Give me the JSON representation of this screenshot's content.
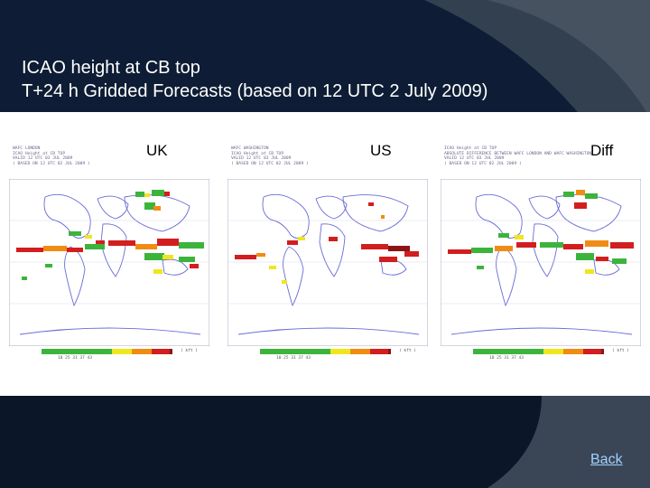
{
  "slide": {
    "title_line1": "ICAO height at CB top",
    "title_line2": "T+24 h Gridded Forecasts (based on 12 UTC 2 July 2009)"
  },
  "panels": [
    {
      "label": "UK",
      "header": "WAFC LONDON\nICAO Height at CB TOP\nVALID 12 UTC 03 JUL 2009\n( BASED ON 12 UTC 02 JUL 2009 )"
    },
    {
      "label": "US",
      "header": "WAFC WASHINGTON\nICAO Height at CB TOP\nVALID 12 UTC 03 JUL 2009\n( BASED ON 12 UTC 02 JUL 2009 )"
    },
    {
      "label": "Diff",
      "header": "ICAO Height at CB TOP\nABSOLUTE DIFFERENCE BETWEEN WAFC LONDON AND WAFC WASHINGTON\nVALID 12 UTC 03 JUL 2009\n( BASED ON 12 UTC 02 JUL 2009 )"
    }
  ],
  "legend": {
    "ticks": "10          25    31    37    43",
    "unit": "( kft )",
    "colors": [
      "#3cb43c",
      "#3cb43c",
      "#f0e61e",
      "#f08c14",
      "#d21e1e",
      "#8c1414"
    ]
  },
  "nav": {
    "back_label": "Back"
  },
  "colors": {
    "background": "#0c1a30",
    "swoosh": "#3a4656",
    "band": "#0b1628"
  }
}
